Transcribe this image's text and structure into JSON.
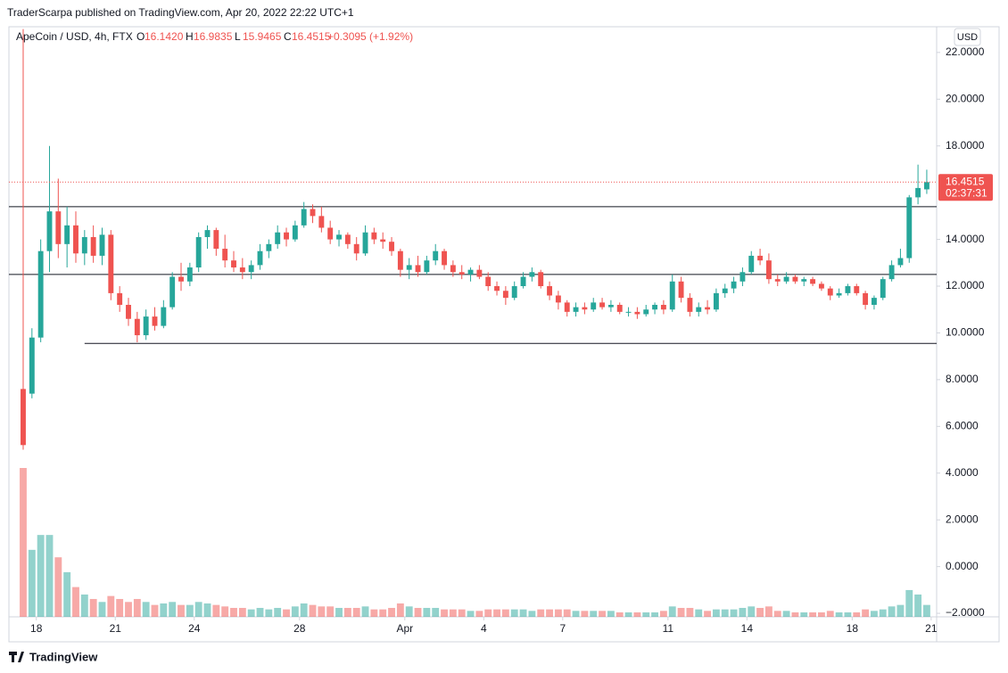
{
  "chart_data": {
    "type": "candlestick",
    "publisher_line": "TraderScarpa published on TradingView.com, Apr 20, 2022 22:22 UTC+1",
    "symbol": "ApeCoin / USD, 4h, FTX",
    "ohlc_header": [
      {
        "key": "O",
        "value": "16.1420"
      },
      {
        "key": "H",
        "value": "16.9835"
      },
      {
        "key": "L",
        "value": "15.9465"
      },
      {
        "key": "C",
        "value": "16.4515"
      }
    ],
    "change": "+0.3095 (+1.92%)",
    "currency": "USD",
    "footer": "TradingView",
    "up_color": "#26a69a",
    "down_color": "#ef5350",
    "x": [
      12,
      20,
      28,
      36,
      44,
      52,
      60,
      68,
      76,
      84,
      92,
      100,
      108,
      116,
      124,
      132,
      140,
      148,
      156,
      164,
      172,
      180,
      188,
      196,
      204,
      212,
      220,
      228,
      236,
      244,
      252,
      260,
      268,
      276,
      284,
      292,
      300,
      308,
      316,
      324,
      332,
      340,
      348,
      356,
      364,
      372,
      380,
      388,
      396,
      404,
      412,
      420,
      428,
      436,
      444,
      452,
      460,
      468,
      476,
      484,
      492,
      500,
      508,
      516,
      524,
      532,
      540,
      548,
      556,
      564,
      572,
      580,
      588,
      596,
      604,
      612,
      620,
      628,
      636,
      644,
      652,
      660,
      668,
      676,
      684,
      692,
      700,
      708,
      716,
      724,
      732,
      740,
      748,
      756,
      764,
      772,
      780,
      788,
      796,
      804,
      812,
      820,
      828,
      836
    ],
    "open": [
      7.6,
      7.4,
      9.8,
      13.5,
      15.2,
      13.8,
      14.6,
      13.4,
      14.1,
      13.3,
      14.2,
      11.7,
      11.2,
      10.6,
      9.9,
      10.7,
      10.3,
      11.1,
      12.4,
      12.2,
      12.8,
      14.1,
      14.4,
      13.6,
      13.1,
      12.8,
      12.6,
      12.9,
      13.5,
      13.8,
      14.3,
      14.0,
      14.6,
      15.3,
      15.0,
      14.5,
      14.0,
      14.2,
      13.8,
      13.4,
      14.3,
      14.0,
      13.9,
      13.5,
      12.7,
      12.9,
      12.6,
      13.1,
      13.5,
      12.9,
      12.6,
      12.5,
      12.7,
      12.4,
      12.0,
      11.8,
      11.5,
      12.0,
      12.4,
      12.6,
      12.0,
      11.6,
      11.3,
      10.9,
      11.1,
      11.0,
      11.3,
      11.1,
      11.2,
      10.9,
      10.9,
      10.8,
      11.0,
      11.2,
      11.0,
      12.2,
      11.5,
      10.9,
      11.1,
      11.0,
      11.7,
      11.9,
      12.2,
      12.6,
      13.3,
      13.1,
      12.3,
      12.2,
      12.4,
      12.2,
      12.3,
      12.1,
      11.9,
      11.6,
      11.7,
      12.0,
      11.7,
      11.2,
      11.5,
      12.3,
      12.9,
      13.2,
      15.8,
      16.142
    ],
    "high": [
      23,
      10.2,
      14,
      18,
      16.6,
      15.4,
      15.2,
      14.4,
      14.6,
      14.5,
      14.4,
      12.0,
      11.5,
      10.9,
      11.0,
      11.1,
      11.4,
      12.6,
      13.0,
      13.0,
      14.3,
      14.6,
      14.5,
      14.2,
      13.5,
      13.2,
      13.1,
      13.8,
      14.0,
      14.6,
      14.5,
      14.8,
      15.6,
      15.5,
      15.4,
      14.8,
      14.4,
      14.3,
      14.1,
      14.6,
      14.5,
      14.3,
      14.1,
      13.6,
      13.2,
      13.3,
      13.3,
      13.8,
      13.6,
      13.1,
      12.9,
      12.8,
      12.9,
      12.6,
      12.2,
      12.0,
      12.2,
      12.6,
      12.8,
      12.7,
      12.2,
      11.8,
      11.4,
      11.3,
      11.3,
      11.5,
      11.5,
      11.4,
      11.3,
      11.1,
      11.1,
      11.2,
      11.3,
      11.4,
      12.5,
      12.4,
      11.7,
      11.3,
      11.4,
      11.9,
      12.1,
      12.4,
      12.8,
      13.5,
      13.6,
      13.4,
      12.5,
      12.6,
      12.5,
      12.4,
      12.4,
      12.2,
      12.0,
      11.9,
      12.1,
      12.1,
      11.8,
      11.6,
      12.4,
      13.1,
      13.6,
      15.9,
      17.2,
      16.9835
    ],
    "low": [
      5.0,
      7.2,
      9.6,
      12.6,
      13.2,
      12.8,
      13.0,
      12.9,
      13.0,
      12.9,
      11.4,
      10.9,
      10.3,
      9.6,
      9.7,
      10.1,
      10.2,
      11.0,
      11.8,
      12.0,
      12.6,
      13.6,
      13.3,
      12.8,
      12.6,
      12.3,
      12.3,
      12.7,
      13.2,
      13.6,
      13.7,
      13.9,
      14.5,
      14.7,
      14.3,
      13.8,
      13.7,
      13.6,
      13.1,
      13.3,
      13.8,
      13.6,
      13.3,
      12.4,
      12.3,
      12.4,
      12.5,
      12.9,
      12.7,
      12.4,
      12.3,
      12.2,
      12.3,
      11.8,
      11.6,
      11.2,
      11.4,
      11.9,
      12.2,
      11.9,
      11.4,
      11.0,
      10.7,
      10.7,
      10.8,
      10.9,
      11.0,
      10.9,
      10.8,
      10.7,
      10.6,
      10.7,
      10.8,
      10.8,
      10.9,
      11.3,
      10.7,
      10.7,
      10.8,
      10.9,
      11.5,
      11.7,
      12.0,
      12.5,
      12.9,
      12.1,
      12.0,
      12.1,
      12.1,
      12.0,
      12.0,
      11.8,
      11.4,
      11.5,
      11.6,
      11.6,
      11.0,
      11.0,
      11.4,
      12.2,
      12.8,
      13.0,
      15.5,
      15.9465
    ],
    "close": [
      5.2,
      9.8,
      13.5,
      15.2,
      13.8,
      14.6,
      13.4,
      14.1,
      13.3,
      14.2,
      11.7,
      11.2,
      10.6,
      9.9,
      10.7,
      10.3,
      11.1,
      12.4,
      12.2,
      12.8,
      14.1,
      14.4,
      13.6,
      13.1,
      12.8,
      12.6,
      12.9,
      13.5,
      13.8,
      14.3,
      14.0,
      14.6,
      15.3,
      15.0,
      14.5,
      14.0,
      14.2,
      13.8,
      13.4,
      14.3,
      14.0,
      13.9,
      13.5,
      12.7,
      12.9,
      12.6,
      13.1,
      13.5,
      12.9,
      12.6,
      12.5,
      12.7,
      12.4,
      12.0,
      11.8,
      11.5,
      12.0,
      12.4,
      12.6,
      12.0,
      11.6,
      11.3,
      10.9,
      11.1,
      11.0,
      11.3,
      11.1,
      11.2,
      10.9,
      10.9,
      10.8,
      11.0,
      11.2,
      11.0,
      12.2,
      11.5,
      10.9,
      11.1,
      11.0,
      11.7,
      11.9,
      12.2,
      12.6,
      13.3,
      13.1,
      12.3,
      12.2,
      12.4,
      12.2,
      12.3,
      12.1,
      11.9,
      11.6,
      11.7,
      12.0,
      11.7,
      11.2,
      11.5,
      12.3,
      12.9,
      13.2,
      15.8,
      16.2,
      16.4515
    ],
    "volume": [
      100,
      45,
      55,
      55,
      40,
      30,
      20,
      15,
      12,
      10,
      14,
      12,
      10,
      12,
      10,
      8,
      9,
      10,
      8,
      8,
      10,
      9,
      8,
      7,
      6,
      6,
      5,
      6,
      5,
      6,
      5,
      7,
      9,
      8,
      7,
      7,
      6,
      6,
      6,
      7,
      5,
      5,
      6,
      9,
      7,
      6,
      6,
      6,
      5,
      5,
      5,
      4,
      4,
      5,
      5,
      5,
      5,
      5,
      4,
      5,
      5,
      5,
      5,
      4,
      4,
      4,
      4,
      4,
      3,
      3,
      3,
      3,
      3,
      4,
      7,
      6,
      6,
      5,
      4,
      5,
      5,
      5,
      6,
      7,
      6,
      7,
      4,
      4,
      3,
      3,
      3,
      3,
      4,
      3,
      3,
      3,
      5,
      4,
      5,
      7,
      8,
      18,
      15,
      8
    ],
    "hlines": [
      {
        "value": 15.4
      },
      {
        "value": 12.5
      },
      {
        "value": 9.55,
        "x0": 68
      }
    ],
    "last_price": {
      "value": 16.4515,
      "label": "16.4515"
    },
    "countdown": "02:37:31",
    "xlim": [
      -1,
      845
    ],
    "xticks": [
      {
        "value": 24,
        "label": "18"
      },
      {
        "value": 96,
        "label": "21"
      },
      {
        "value": 168,
        "label": "24"
      },
      {
        "value": 264,
        "label": "28"
      },
      {
        "value": 360,
        "label": "Apr"
      },
      {
        "value": 432,
        "label": "4"
      },
      {
        "value": 504,
        "label": "7"
      },
      {
        "value": 600,
        "label": "11"
      },
      {
        "value": 672,
        "label": "14"
      },
      {
        "value": 768,
        "label": "18"
      },
      {
        "value": 840,
        "label": "21"
      }
    ],
    "ylim": [
      -2.15,
      23.1
    ],
    "yticks": [
      {
        "value": 22,
        "label": "22.0000"
      },
      {
        "value": 20,
        "label": "20.0000"
      },
      {
        "value": 18,
        "label": "18.0000"
      },
      {
        "value": 14,
        "label": "14.0000"
      },
      {
        "value": 12,
        "label": "12.0000"
      },
      {
        "value": 10,
        "label": "10.0000"
      },
      {
        "value": 8,
        "label": "8.0000"
      },
      {
        "value": 6,
        "label": "6.0000"
      },
      {
        "value": 4,
        "label": "4.0000"
      },
      {
        "value": 2,
        "label": "2.0000"
      },
      {
        "value": 0,
        "label": "0.0000"
      },
      {
        "value": -2,
        "label": "−2.0000"
      }
    ]
  }
}
